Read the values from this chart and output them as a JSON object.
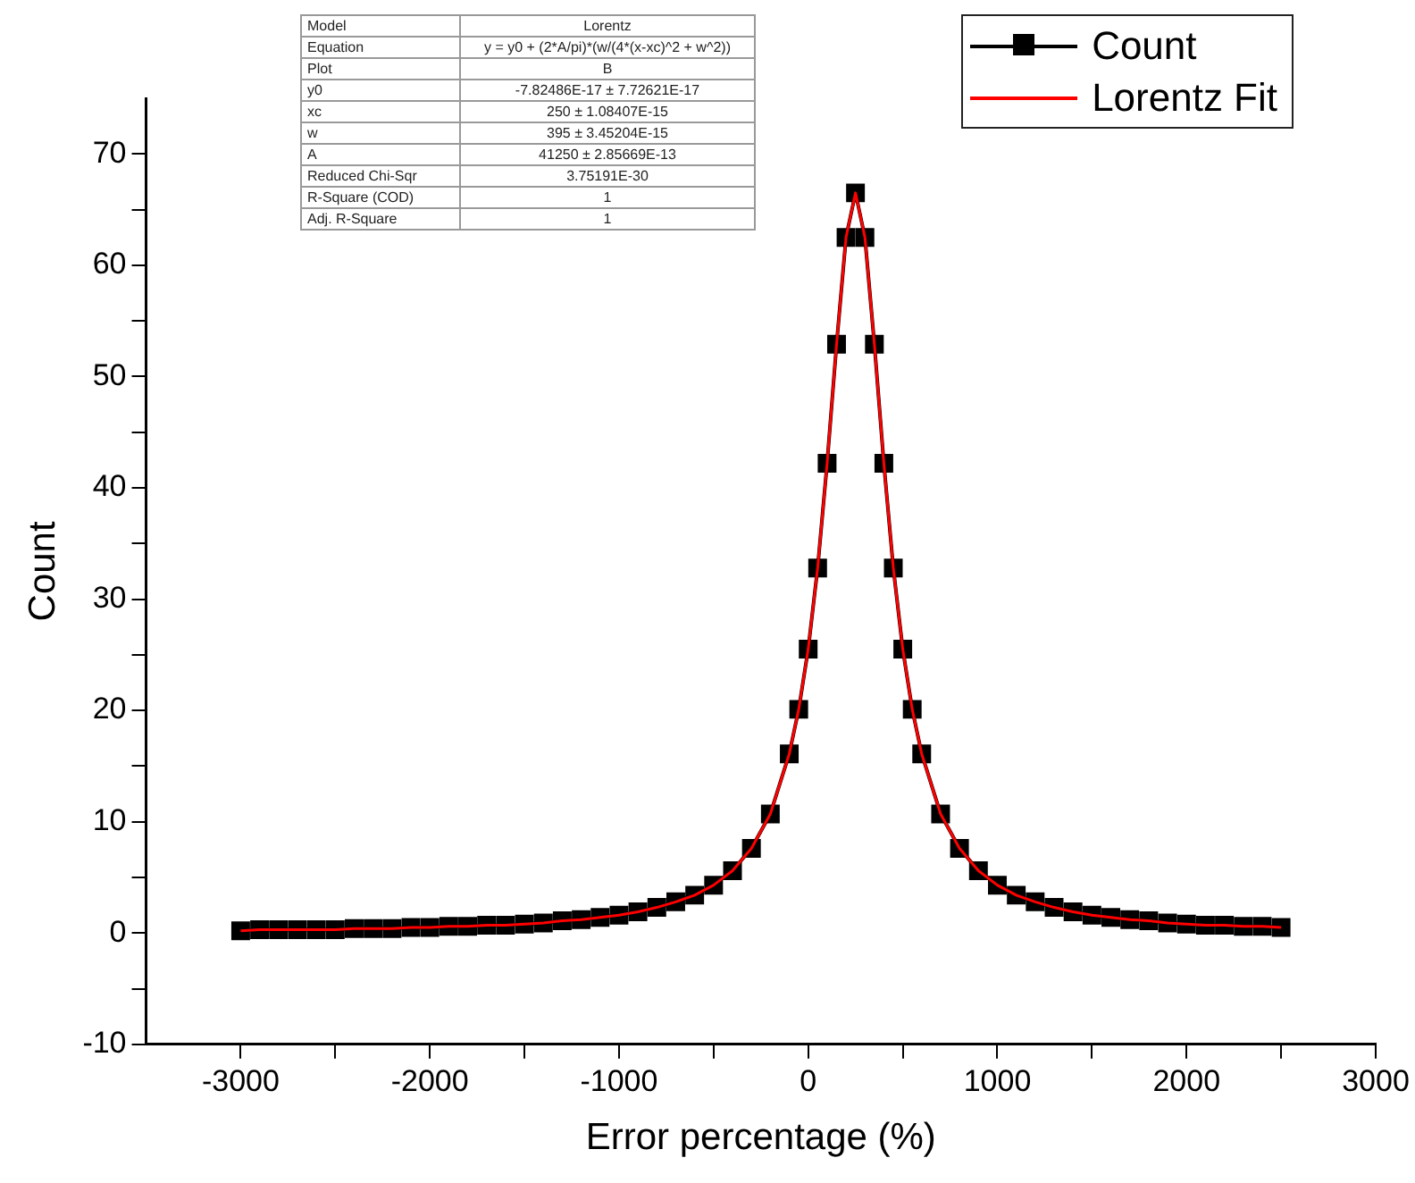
{
  "chart_data": {
    "type": "line",
    "xlabel": "Error percentage (%)",
    "ylabel": "Count",
    "x": [
      -3000,
      -2900,
      -2800,
      -2700,
      -2600,
      -2500,
      -2400,
      -2300,
      -2200,
      -2100,
      -2000,
      -1900,
      -1800,
      -1700,
      -1600,
      -1500,
      -1400,
      -1300,
      -1200,
      -1100,
      -1000,
      -900,
      -800,
      -700,
      -600,
      -500,
      -400,
      -300,
      -200,
      -100,
      -50,
      0,
      50,
      100,
      150,
      200,
      250,
      300,
      350,
      400,
      450,
      500,
      550,
      600,
      700,
      800,
      900,
      1000,
      1100,
      1200,
      1300,
      1400,
      1500,
      1600,
      1700,
      1800,
      1900,
      2000,
      2100,
      2200,
      2300,
      2400,
      2500
    ],
    "series": [
      {
        "name": "Count",
        "color": "#000000",
        "marker": "square",
        "line_style": "solid",
        "values": [
          0.2,
          0.3,
          0.3,
          0.3,
          0.3,
          0.3,
          0.4,
          0.4,
          0.4,
          0.5,
          0.5,
          0.6,
          0.6,
          0.7,
          0.7,
          0.8,
          0.9,
          1.1,
          1.2,
          1.4,
          1.6,
          1.9,
          2.3,
          2.8,
          3.4,
          4.3,
          5.6,
          7.6,
          10.7,
          16.1,
          20.1,
          25.5,
          32.8,
          42.2,
          52.9,
          62.5,
          66.5,
          62.5,
          52.9,
          42.2,
          32.8,
          25.5,
          20.1,
          16.1,
          10.7,
          7.6,
          5.6,
          4.3,
          3.4,
          2.8,
          2.3,
          1.9,
          1.6,
          1.4,
          1.2,
          1.1,
          0.9,
          0.8,
          0.7,
          0.7,
          0.6,
          0.6,
          0.5
        ]
      },
      {
        "name": "Lorentz Fit",
        "color": "#ff0000",
        "marker": "none",
        "line_style": "solid",
        "values": [
          0.2,
          0.3,
          0.3,
          0.3,
          0.3,
          0.3,
          0.4,
          0.4,
          0.4,
          0.5,
          0.5,
          0.6,
          0.6,
          0.7,
          0.7,
          0.8,
          0.9,
          1.1,
          1.2,
          1.4,
          1.6,
          1.9,
          2.3,
          2.8,
          3.4,
          4.3,
          5.6,
          7.6,
          10.7,
          16.1,
          20.1,
          25.5,
          32.8,
          42.2,
          52.9,
          62.5,
          66.5,
          62.5,
          52.9,
          42.2,
          32.8,
          25.5,
          20.1,
          16.1,
          10.7,
          7.6,
          5.6,
          4.3,
          3.4,
          2.8,
          2.3,
          1.9,
          1.6,
          1.4,
          1.2,
          1.1,
          0.9,
          0.8,
          0.7,
          0.7,
          0.6,
          0.6,
          0.5
        ]
      }
    ],
    "xlim": [
      -3500,
      3000
    ],
    "xticks": [
      -3000,
      {
        "value": -2500,
        "label": null
      },
      -2000,
      {
        "value": -1500,
        "label": null
      },
      -1000,
      {
        "value": -500,
        "label": null
      },
      0,
      {
        "value": 500,
        "label": null
      },
      1000,
      {
        "value": 1500,
        "label": null
      },
      2000,
      {
        "value": 2500,
        "label": null
      },
      3000
    ],
    "ylim": [
      -10,
      75
    ],
    "yticks": [
      -10,
      {
        "value": -5,
        "label": null
      },
      0,
      {
        "value": 5,
        "label": null
      },
      10,
      {
        "value": 15,
        "label": null
      },
      20,
      {
        "value": 25,
        "label": null
      },
      30,
      {
        "value": 35,
        "label": null
      },
      40,
      {
        "value": 45,
        "label": null
      },
      50,
      {
        "value": 55,
        "label": null
      },
      60,
      {
        "value": 65,
        "label": null
      },
      70
    ],
    "grid": false,
    "legend": "top right",
    "annotations": [
      "Model",
      "Lorentz",
      "Equation",
      "y = y0 + (2*A/pi)*(w/(4*(x-xc)^2 + w^2))",
      "Plot",
      "B",
      "y0",
      "-7.82486E-17 ± 7.72621E-17",
      "xc",
      "250 ± 1.08407E-15",
      "w",
      "395 ± 3.45204E-15",
      "A",
      "41250 ± 2.85669E-13",
      "Reduced Chi-Sqr",
      "3.75191E-30",
      "R-Square (COD)",
      "1",
      "Adj. R-Square",
      "1"
    ]
  }
}
